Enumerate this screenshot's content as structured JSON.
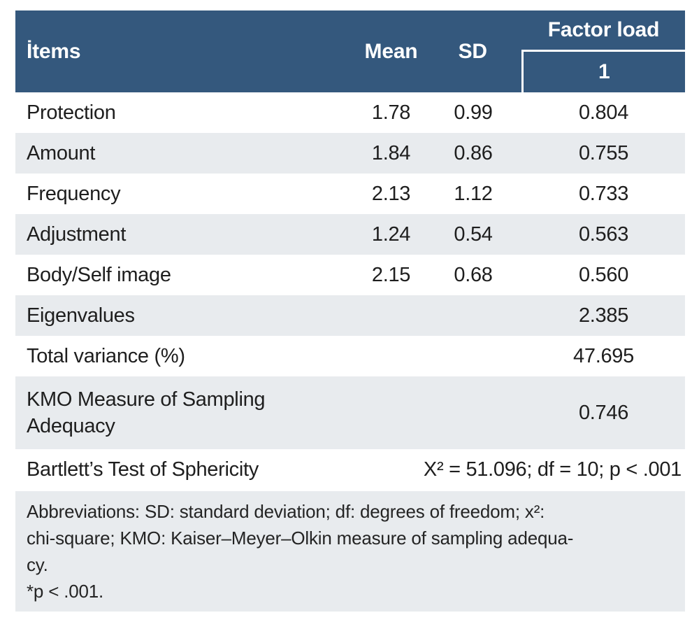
{
  "colors": {
    "header_background": "#34587D",
    "stripe_background": "#E8EBEE",
    "header_text": "#FFFFFF",
    "body_text": "#1E1E1E"
  },
  "table": {
    "header": {
      "items": "İtems",
      "mean": "Mean",
      "sd": "SD",
      "factor_load": "Factor load",
      "factor_sub": "1"
    },
    "rows": [
      {
        "item": "Protection",
        "mean": "1.78",
        "sd": "0.99",
        "factor": "0.804"
      },
      {
        "item": "Amount",
        "mean": "1.84",
        "sd": "0.86",
        "factor": "0.755"
      },
      {
        "item": "Frequency",
        "mean": "2.13",
        "sd": "1.12",
        "factor": "0.733"
      },
      {
        "item": "Adjustment",
        "mean": "1.24",
        "sd": "0.54",
        "factor": "0.563"
      },
      {
        "item": "Body/Self image",
        "mean": "2.15",
        "sd": "0.68",
        "factor": "0.560"
      },
      {
        "item": "Eigenvalues",
        "mean": "",
        "sd": "",
        "factor": "2.385"
      },
      {
        "item": "Total variance (%)",
        "mean": "",
        "sd": "",
        "factor": "47.695"
      },
      {
        "item": "KMO Measure of Sampling\nAdequacy",
        "mean": "",
        "sd": "",
        "factor": "0.746"
      }
    ],
    "bartlett": {
      "label": "Bartlett’s Test of Sphericity",
      "value": "X² = 51.096; df = 10; p < .001"
    }
  },
  "footnote": {
    "abbreviations": "Abbreviations: SD: standard deviation; df: degrees of freedom; x²:\nchi-square; KMO: Kaiser–Meyer–Olkin measure of sampling adequa-\ncy.",
    "significance": "*p < .001."
  }
}
